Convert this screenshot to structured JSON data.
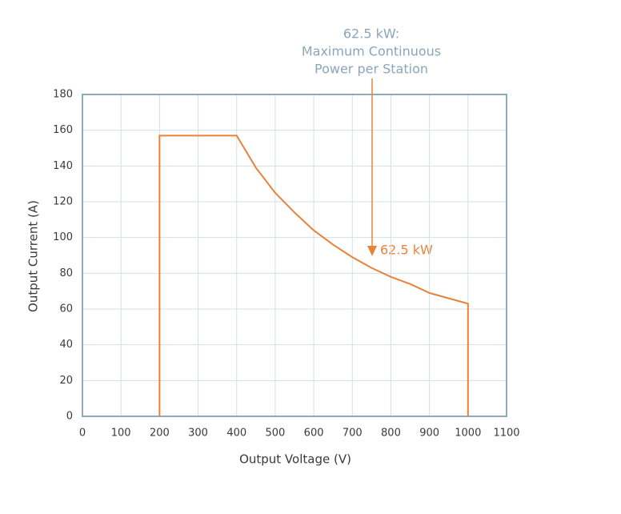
{
  "chart_data": {
    "type": "line",
    "x_label": "Output Voltage (V)",
    "y_label": "Output Current (A)",
    "x": [
      200,
      200,
      400,
      450,
      500,
      550,
      600,
      650,
      700,
      750,
      800,
      850,
      900,
      950,
      1000,
      1000
    ],
    "values": [
      0,
      157,
      157,
      139,
      125,
      114,
      104,
      96,
      89,
      83,
      78,
      74,
      69,
      66,
      63,
      0
    ],
    "color": "#e8823a",
    "xlim": [
      0,
      1100
    ],
    "xticks": [
      0,
      100,
      200,
      300,
      400,
      500,
      600,
      700,
      800,
      900,
      1000,
      1100
    ],
    "ylim": [
      0,
      180
    ],
    "yticks": [
      0,
      20,
      40,
      60,
      80,
      100,
      120,
      140,
      160,
      180
    ],
    "grid": true,
    "annotations": [
      "62.5 kW:",
      "Maximum Continuous",
      "Power per Station",
      "62.5 kW"
    ]
  }
}
